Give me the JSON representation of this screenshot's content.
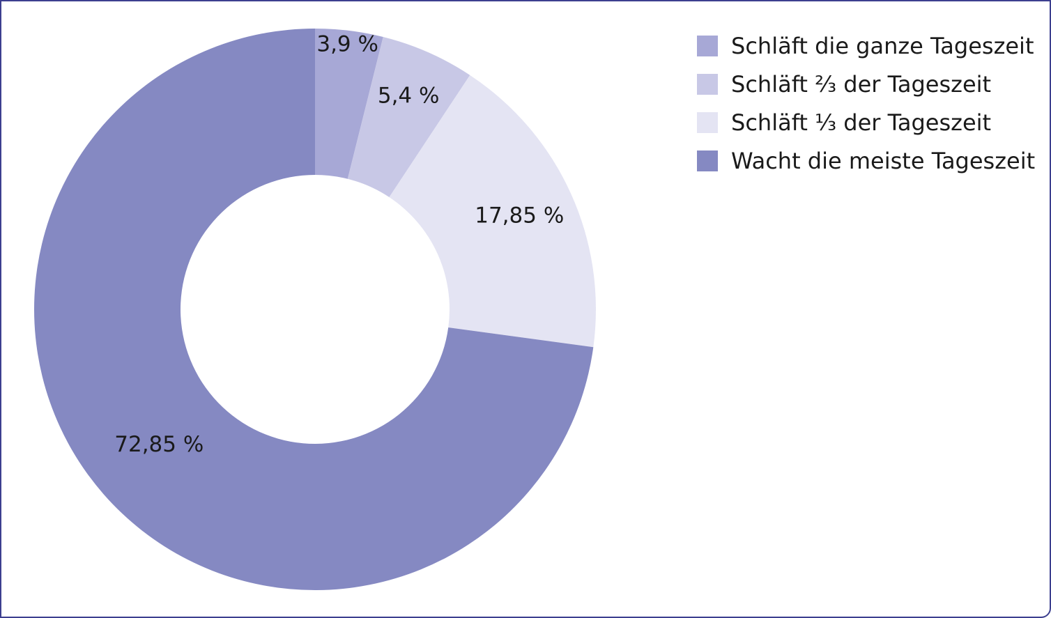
{
  "chart_data": {
    "type": "pie",
    "variant": "donut",
    "slices": [
      {
        "label": "Schläft die ganze Tageszeit",
        "value": 3.9,
        "value_label": "3,9 %",
        "color": "#a7a8d6"
      },
      {
        "label": "Schläft ⅔ der Tageszeit",
        "value": 5.4,
        "value_label": "5,4 %",
        "color": "#c8c8e6"
      },
      {
        "label": "Schläft ⅓ der Tageszeit",
        "value": 17.85,
        "value_label": "17,85 %",
        "color": "#e4e4f3"
      },
      {
        "label": "Wacht die meiste Tageszeit",
        "value": 72.85,
        "value_label": "72,85 %",
        "color": "#8589c2"
      }
    ],
    "legend_position": "top-right",
    "start": "top",
    "direction": "clockwise"
  },
  "colors": {
    "frame_border": "#3c3f8f",
    "text": "#1a1a1a",
    "background": "#ffffff"
  }
}
